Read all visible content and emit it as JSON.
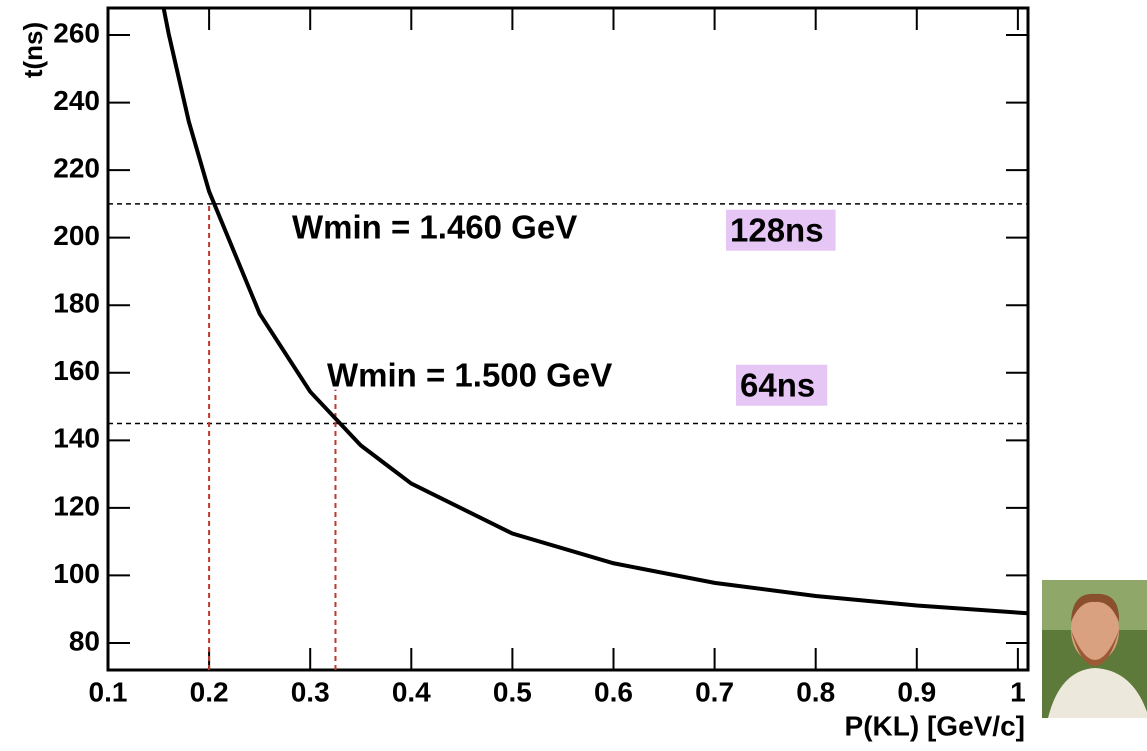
{
  "chart_data": {
    "type": "line",
    "x_label": "P(KL) [GeV/c]",
    "y_label": "t(ns)",
    "x": [
      0.155,
      0.16,
      0.18,
      0.2,
      0.25,
      0.3,
      0.35,
      0.4,
      0.5,
      0.6,
      0.7,
      0.8,
      0.9,
      1.0,
      1.01
    ],
    "series": [
      {
        "color": "#000000",
        "values": [
          268,
          260.4,
          234.3,
          213.7,
          177.5,
          154.4,
          138.5,
          127.2,
          112.4,
          103.6,
          97.8,
          93.9,
          91.1,
          89.0,
          88.8
        ]
      }
    ],
    "xlim": [
      0.1,
      1.01
    ],
    "ylim": [
      72,
      268
    ],
    "xticks": [
      0.1,
      0.2,
      0.3,
      0.4,
      0.5,
      0.6,
      0.7,
      0.8,
      0.9,
      1
    ],
    "yticks": [
      80,
      100,
      120,
      140,
      160,
      180,
      200,
      220,
      240,
      260
    ],
    "hlines": [
      210,
      145
    ],
    "vlines": [
      {
        "x": 0.2,
        "top": 210
      },
      {
        "x": 0.325,
        "top": 155
      }
    ],
    "annotations": [
      "Wmin = 1.460 GeV",
      "128ns",
      "Wmin = 1.500 GeV",
      "64ns"
    ]
  }
}
